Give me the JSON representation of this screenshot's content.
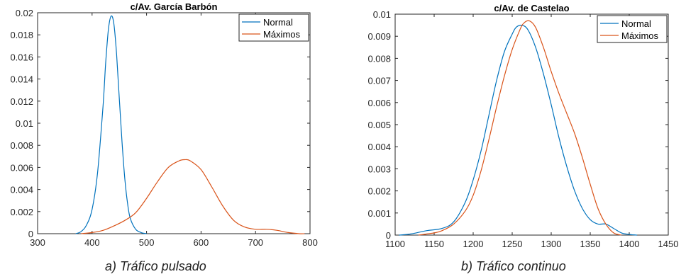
{
  "captions": [
    "a) Tráfico pulsado",
    "b) Tráfico continuo"
  ],
  "colors": {
    "normal": "#0072BD",
    "maximos": "#D95319"
  },
  "chart_data": [
    {
      "type": "line",
      "title": "c/Av. García Barbón",
      "xlabel": "",
      "ylabel": "",
      "xlim": [
        300,
        800
      ],
      "ylim": [
        0,
        0.02
      ],
      "xticks": [
        300,
        400,
        500,
        600,
        700,
        800
      ],
      "yticks": [
        0,
        0.002,
        0.004,
        0.006,
        0.008,
        0.01,
        0.012,
        0.014,
        0.016,
        0.018,
        0.02
      ],
      "ytick_labels": [
        "0",
        "0.002",
        "0.004",
        "0.006",
        "0.008",
        "0.01",
        "0.012",
        "0.014",
        "0.016",
        "0.018",
        "0.02"
      ],
      "legend": "top-right",
      "grid": false,
      "series": [
        {
          "name": "Normal",
          "color": "#0072BD",
          "x": [
            370,
            380,
            390,
            400,
            410,
            420,
            425,
            430,
            435,
            440,
            445,
            450,
            455,
            460,
            465,
            470,
            480,
            490,
            500
          ],
          "y": [
            0,
            0.0002,
            0.0008,
            0.0022,
            0.0055,
            0.0115,
            0.0155,
            0.0185,
            0.0197,
            0.019,
            0.0162,
            0.0122,
            0.0083,
            0.005,
            0.0028,
            0.0014,
            0.0004,
            0.0001,
            0
          ]
        },
        {
          "name": "Máximos",
          "color": "#D95319",
          "x": [
            380,
            400,
            420,
            440,
            460,
            480,
            500,
            520,
            540,
            560,
            570,
            580,
            600,
            620,
            640,
            660,
            680,
            700,
            720,
            740,
            760,
            780,
            790
          ],
          "y": [
            0,
            0.0001,
            0.0003,
            0.0007,
            0.0012,
            0.0019,
            0.0032,
            0.0047,
            0.006,
            0.0066,
            0.0067,
            0.0066,
            0.0058,
            0.0042,
            0.0025,
            0.0012,
            0.0006,
            0.0004,
            0.0004,
            0.0003,
            0.0001,
            0,
            0
          ]
        }
      ]
    },
    {
      "type": "line",
      "title": "c/Av. de Castelao",
      "xlabel": "",
      "ylabel": "",
      "xlim": [
        1100,
        1450
      ],
      "ylim": [
        0,
        0.01
      ],
      "xticks": [
        1100,
        1150,
        1200,
        1250,
        1300,
        1350,
        1400,
        1450
      ],
      "yticks": [
        0,
        0.001,
        0.002,
        0.003,
        0.004,
        0.005,
        0.006,
        0.007,
        0.008,
        0.009,
        0.01
      ],
      "ytick_labels": [
        "0",
        "0.001",
        "0.002",
        "0.003",
        "0.004",
        "0.005",
        "0.006",
        "0.007",
        "0.008",
        "0.009",
        "0.01"
      ],
      "legend": "top-right",
      "grid": false,
      "series": [
        {
          "name": "Normal",
          "color": "#0072BD",
          "x": [
            1105,
            1120,
            1140,
            1160,
            1175,
            1190,
            1200,
            1210,
            1220,
            1230,
            1240,
            1250,
            1255,
            1262,
            1270,
            1280,
            1290,
            1300,
            1310,
            1320,
            1330,
            1340,
            1350,
            1360,
            1370,
            1380,
            1390,
            1400,
            1410
          ],
          "y": [
            0,
            5e-05,
            0.0002,
            0.0003,
            0.0006,
            0.0015,
            0.0025,
            0.0038,
            0.0054,
            0.007,
            0.0083,
            0.0091,
            0.0094,
            0.0095,
            0.0093,
            0.0085,
            0.0073,
            0.0059,
            0.0044,
            0.0031,
            0.002,
            0.0012,
            0.0007,
            0.0005,
            0.0005,
            0.0003,
            0.0001,
            3e-05,
            0
          ]
        },
        {
          "name": "Máximos",
          "color": "#D95319",
          "x": [
            1130,
            1150,
            1160,
            1175,
            1190,
            1200,
            1210,
            1220,
            1230,
            1240,
            1250,
            1260,
            1265,
            1272,
            1280,
            1290,
            1300,
            1310,
            1320,
            1330,
            1340,
            1350,
            1360,
            1370,
            1380,
            1390
          ],
          "y": [
            0,
            0.0001,
            0.0002,
            0.0005,
            0.0011,
            0.0018,
            0.0029,
            0.0043,
            0.0058,
            0.0072,
            0.0084,
            0.0093,
            0.0096,
            0.0097,
            0.0094,
            0.0085,
            0.0074,
            0.0064,
            0.0055,
            0.0046,
            0.0035,
            0.0023,
            0.0012,
            0.0005,
            0.0001,
            0
          ]
        }
      ]
    }
  ]
}
